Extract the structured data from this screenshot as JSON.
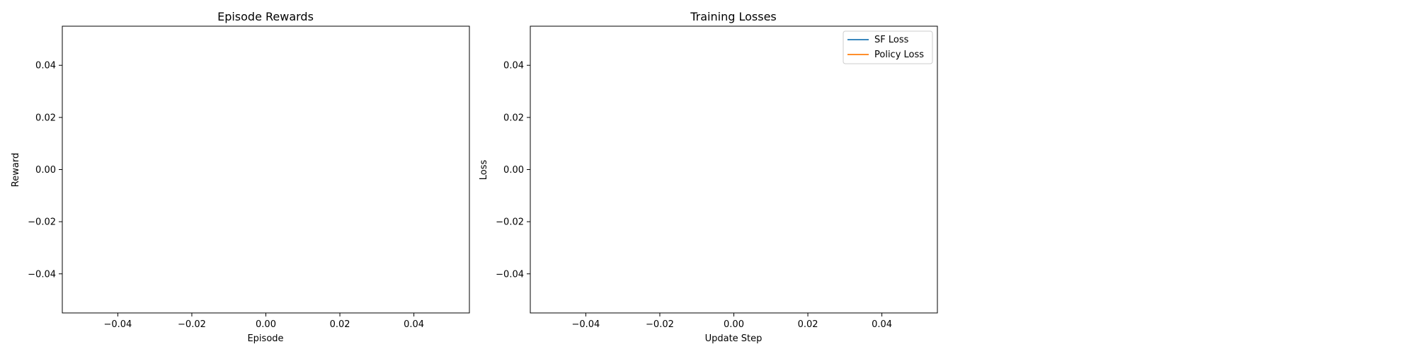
{
  "chart_data": [
    {
      "type": "line",
      "title": "Episode Rewards",
      "xlabel": "Episode",
      "ylabel": "Reward",
      "xlim": [
        -0.055,
        0.055
      ],
      "ylim": [
        -0.055,
        0.055
      ],
      "x_ticks": [
        "−0.04",
        "−0.02",
        "0.00",
        "0.02",
        "0.04"
      ],
      "y_ticks": [
        "−0.04",
        "−0.02",
        "0.00",
        "0.02",
        "0.04"
      ],
      "series": [],
      "legend": null,
      "grid": false
    },
    {
      "type": "line",
      "title": "Training Losses",
      "xlabel": "Update Step",
      "ylabel": "Loss",
      "xlim": [
        -0.055,
        0.055
      ],
      "ylim": [
        -0.055,
        0.055
      ],
      "x_ticks": [
        "−0.04",
        "−0.02",
        "0.00",
        "0.02",
        "0.04"
      ],
      "y_ticks": [
        "−0.04",
        "−0.02",
        "0.00",
        "0.02",
        "0.04"
      ],
      "series": [
        {
          "name": "SF Loss",
          "color": "#1f77b4",
          "x": [],
          "y": []
        },
        {
          "name": "Policy Loss",
          "color": "#ff7f0e",
          "x": [],
          "y": []
        }
      ],
      "legend": {
        "position": "upper right"
      },
      "grid": false
    }
  ]
}
